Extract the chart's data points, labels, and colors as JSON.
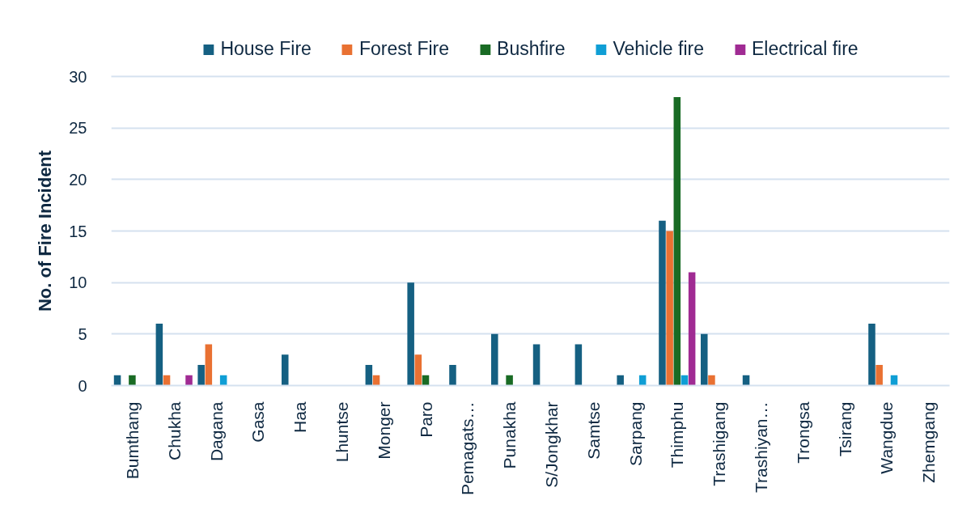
{
  "chart_data": {
    "type": "bar",
    "ylabel": "No. of Fire Incident",
    "categories": [
      "Bumthang",
      "Chukha",
      "Dagana",
      "Gasa",
      "Haa",
      "Lhuntse",
      "Monger",
      "Paro",
      "Pemagats…",
      "Punakha",
      "S/Jongkhar",
      "Samtse",
      "Sarpang",
      "Thimphu",
      "Trashigang",
      "Trashiyan…",
      "Trongsa",
      "Tsirang",
      "Wangdue",
      "Zhemgang"
    ],
    "series": [
      {
        "name": "House Fire",
        "color": "#156082",
        "values": [
          1,
          6,
          2,
          null,
          3,
          null,
          2,
          10,
          2,
          5,
          4,
          4,
          1,
          16,
          5,
          1,
          null,
          null,
          6,
          null
        ]
      },
      {
        "name": "Forest Fire",
        "color": "#e97132",
        "values": [
          null,
          1,
          4,
          null,
          null,
          null,
          1,
          3,
          null,
          null,
          null,
          null,
          null,
          15,
          1,
          null,
          null,
          null,
          2,
          null
        ]
      },
      {
        "name": "Bushfire",
        "color": "#196b24",
        "values": [
          1,
          null,
          null,
          null,
          null,
          null,
          null,
          1,
          null,
          1,
          null,
          null,
          null,
          28,
          null,
          null,
          null,
          null,
          null,
          null
        ]
      },
      {
        "name": "Vehicle fire",
        "color": "#0f9ed5",
        "values": [
          null,
          null,
          1,
          null,
          null,
          null,
          null,
          null,
          null,
          null,
          null,
          null,
          1,
          1,
          null,
          null,
          null,
          null,
          1,
          null
        ]
      },
      {
        "name": "Electrical fire",
        "color": "#a02b93",
        "values": [
          null,
          1,
          null,
          null,
          null,
          null,
          null,
          null,
          null,
          null,
          null,
          null,
          null,
          11,
          null,
          null,
          null,
          null,
          null,
          null
        ]
      }
    ],
    "ylim": [
      0,
      30
    ],
    "yticks": [
      0,
      5,
      10,
      15,
      20,
      25,
      30
    ],
    "grid": "y",
    "legend": "top"
  }
}
